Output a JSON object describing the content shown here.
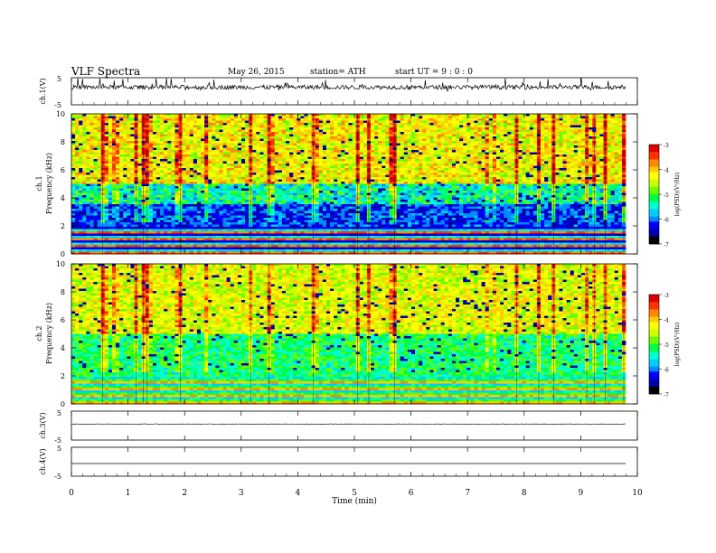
{
  "header": {
    "title": "VLF  Spectra",
    "date": "May 26, 2015",
    "station": "station= ATH",
    "start": "start  UT  =   9  : 0  : 0"
  },
  "chart_data": [
    {
      "type": "line",
      "panel": "ch1-waveform",
      "ylabel": "ch.1(V)",
      "ylim": [
        -5,
        5
      ],
      "yticks": [
        "5",
        "-5"
      ],
      "xlim": [
        0,
        10
      ],
      "approx_baseline": 1.5,
      "approx_range": [
        -1.8,
        4.4
      ]
    },
    {
      "type": "heatmap",
      "panel": "ch1-spectrogram",
      "ylabel": "ch.1\nFrequency  (kHz)",
      "ylim": [
        0,
        10
      ],
      "yticks": [
        "0",
        "2",
        "4",
        "6",
        "8",
        "10"
      ],
      "xlim": [
        0,
        9.8
      ],
      "colorbar": {
        "label": "log(PSD)(V²/Hz)",
        "ticks": [
          "-3",
          "-4",
          "-5",
          "-6",
          "-7"
        ],
        "range": [
          -7,
          -3
        ]
      },
      "description_levels": {
        "below_2kHz": "banded green/blue/red lines",
        "2_to_3_5kHz": -6.2,
        "3_5_to_5kHz": -5.5,
        "5_to_10kHz": -4.3
      }
    },
    {
      "type": "heatmap",
      "panel": "ch2-spectrogram",
      "ylabel": "ch.2\nFrequency  (kHz)",
      "ylim": [
        0,
        10
      ],
      "yticks": [
        "0",
        "2",
        "4",
        "6",
        "8",
        "10"
      ],
      "xlim": [
        0,
        9.8
      ],
      "colorbar": {
        "label": "log(PSD)(V²/Hz)",
        "ticks": [
          "-3",
          "-4",
          "-5",
          "-6",
          "-7"
        ],
        "range": [
          -7,
          -3
        ]
      },
      "description_levels": {
        "below_2kHz": "banded orange/green lines",
        "2_to_5kHz": -5.3,
        "5_to_10kHz": -4.4
      }
    },
    {
      "type": "line",
      "panel": "ch3-waveform",
      "ylabel": "ch.3(V)",
      "ylim": [
        -5,
        5
      ],
      "yticks": [
        "5",
        "-5"
      ],
      "xlim": [
        0,
        10
      ],
      "approx_level": 0.5
    },
    {
      "type": "line",
      "panel": "ch4-waveform",
      "ylabel": "ch.4(V)",
      "ylim": [
        -5,
        5
      ],
      "yticks": [
        "5",
        "-5"
      ],
      "xlim": [
        0,
        10
      ],
      "approx_level": -1.2
    }
  ],
  "x_axis": {
    "label": "Time  (min)",
    "ticks": [
      "0",
      "1",
      "2",
      "3",
      "4",
      "5",
      "6",
      "7",
      "8",
      "9",
      "10"
    ],
    "range": [
      0,
      10
    ]
  },
  "colors": {
    "palette": [
      "#000000",
      "#0000aa",
      "#0000ff",
      "#0088ff",
      "#00ccff",
      "#00ffcc",
      "#00ff44",
      "#66ff00",
      "#ccff00",
      "#ffff00",
      "#ffcc00",
      "#ff8800",
      "#ff3300",
      "#dd0000"
    ]
  }
}
